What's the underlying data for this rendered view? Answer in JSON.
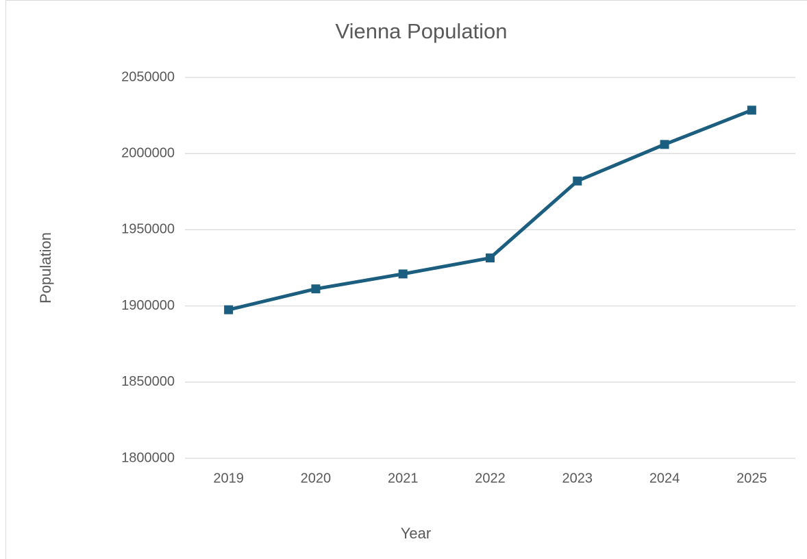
{
  "chart_data": {
    "type": "line",
    "title": "Vienna Population",
    "x_label": "Year",
    "y_label": "Population",
    "categories": [
      "2019",
      "2020",
      "2021",
      "2022",
      "2023",
      "2024",
      "2025"
    ],
    "series": [
      {
        "name": "Population",
        "color": "#1b5e80",
        "values": [
          1897500,
          1911200,
          1921000,
          1931500,
          1982000,
          2006000,
          2028500
        ]
      }
    ],
    "ylim": [
      1800000,
      2050000
    ],
    "yticks": [
      1800000,
      1850000,
      1900000,
      1950000,
      2000000,
      2050000
    ],
    "grid": true
  }
}
